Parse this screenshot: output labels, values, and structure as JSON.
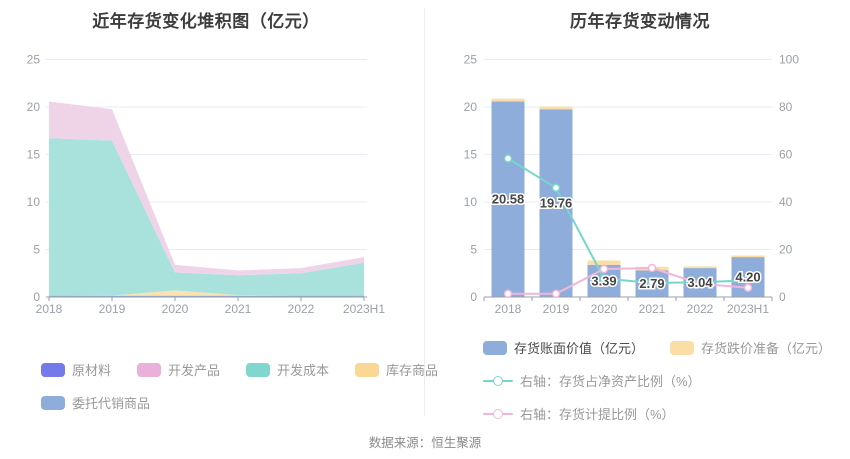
{
  "footer": {
    "text": "数据来源：恒生聚源"
  },
  "colors": {
    "grid": "#e6ebf6",
    "axis_line": "#98a0a8",
    "axis_label": "#9aa1aa",
    "title": "#3d3d3d",
    "bar_label": "#444444",
    "baseline_strip": "#8fadda"
  },
  "chart_data": [
    {
      "type": "area",
      "stacked": true,
      "title": "近年存货变化堆积图（亿元）",
      "x": [
        "2018",
        "2019",
        "2020",
        "2021",
        "2022",
        "2023H1"
      ],
      "ylim": [
        0,
        25
      ],
      "yticks": [
        0,
        5,
        10,
        15,
        20,
        25
      ],
      "grid": true,
      "legend_position": "bottom",
      "series": [
        {
          "id": "raw-materials",
          "name": "原材料",
          "color": "#767ae8",
          "area_color": "#babdf3",
          "values": [
            0.03,
            0.03,
            0.03,
            0.03,
            0.03,
            0.03
          ]
        },
        {
          "id": "consignment-goods",
          "name": "委托代销商品",
          "color": "#8fadda",
          "area_color": "#c6d5ec",
          "values": [
            0.02,
            0.02,
            0.02,
            0.02,
            0.02,
            0.02
          ]
        },
        {
          "id": "stock-goods",
          "name": "库存商品",
          "color": "#fbd795",
          "area_color": "#fbe2ae",
          "values": [
            0.05,
            0.1,
            0.65,
            0.15,
            0.05,
            0.05
          ]
        },
        {
          "id": "dev-costs",
          "name": "开发成本",
          "color": "#81d7cf",
          "area_color": "#a9e2dd",
          "values": [
            16.63,
            16.31,
            1.89,
            2.09,
            2.39,
            3.5
          ]
        },
        {
          "id": "dev-products",
          "name": "开发产品",
          "color": "#e9b0da",
          "area_color": "#efd4e8",
          "values": [
            3.85,
            3.3,
            0.8,
            0.5,
            0.55,
            0.6
          ]
        }
      ]
    },
    {
      "type": "bar+line",
      "title": "历年存货变动情况",
      "x": [
        "2018",
        "2019",
        "2020",
        "2021",
        "2022",
        "2023H1"
      ],
      "left_axis": {
        "ylim": [
          0,
          25
        ],
        "ticks": [
          0,
          5,
          10,
          15,
          20,
          25
        ]
      },
      "right_axis": {
        "ylim": [
          0,
          100
        ],
        "ticks": [
          0,
          20,
          40,
          60,
          80,
          100
        ]
      },
      "grid": true,
      "legend_position": "bottom",
      "bars": {
        "id": "inventory-book-value",
        "name": "存货账面价值（亿元）",
        "color": "#8fadda",
        "values": [
          20.58,
          19.76,
          3.39,
          2.79,
          3.04,
          4.2
        ],
        "labels": [
          "20.58",
          "19.76",
          "3.39",
          "2.79",
          "3.04",
          "4.20"
        ]
      },
      "caps": {
        "id": "inventory-impairment",
        "name": "存货跌价准备（亿元）",
        "color": "#fbdda6",
        "values": [
          0.29,
          0.28,
          0.45,
          0.39,
          0.18,
          0.17
        ]
      },
      "lines": [
        {
          "id": "inventory-to-net-assets",
          "name": "右轴：存货占净资产比例（%）",
          "color": "#76d6cd",
          "axis": "right",
          "values": [
            58.3,
            46.0,
            7.8,
            5.9,
            6.2,
            7.0
          ]
        },
        {
          "id": "impairment-ratio",
          "name": "右轴：存货计提比例（%）",
          "color": "#f2b6d9",
          "axis": "right",
          "values": [
            1.4,
            1.4,
            11.8,
            12.2,
            5.6,
            3.9
          ]
        }
      ]
    }
  ]
}
